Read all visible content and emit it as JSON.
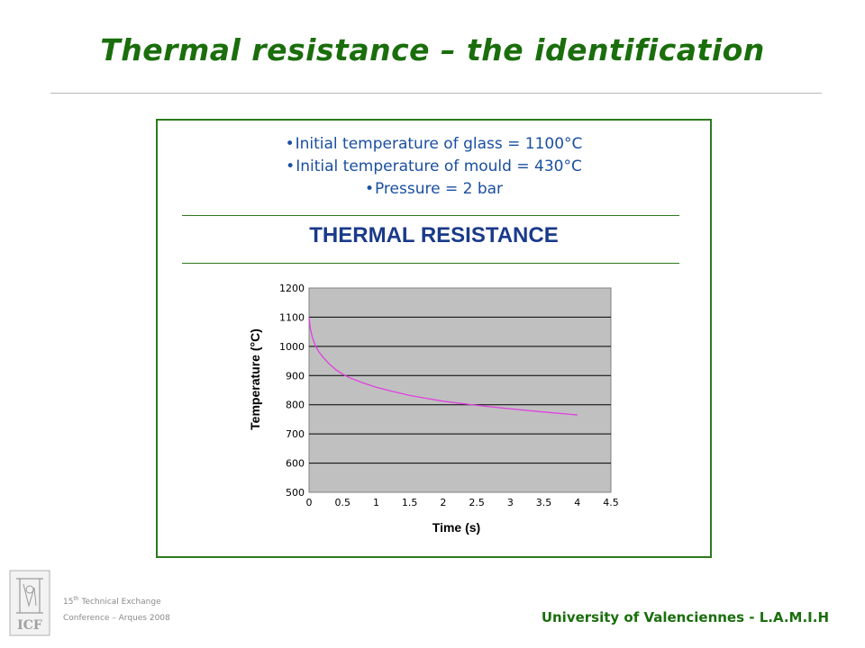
{
  "slide": {
    "title": "Thermal resistance – the identification",
    "bullets": [
      "Initial temperature of glass = 1100°C",
      "Initial temperature of mould = 430°C",
      "Pressure = 2 bar"
    ],
    "subtitle": "THERMAL RESISTANCE",
    "footer_left_line1": "15",
    "footer_left_sup": "th",
    "footer_left_line1_rest": " Technical Exchange",
    "footer_left_line2": "Conference – Arques 2008",
    "footer_right": "University of Valenciennes - L.A.M.I.H",
    "logo_text": "ICF"
  },
  "colors": {
    "title": "#1a6e0c",
    "bullets": "#1a4fa0",
    "subtitle": "#1a3a8a",
    "plot_bg": "#c0c0c0",
    "curve": "#e040e0"
  },
  "chart_data": {
    "type": "line",
    "xlabel": "Time (s)",
    "ylabel": "Temperature (°C)",
    "xlim": [
      0,
      4.5
    ],
    "ylim": [
      500,
      1200
    ],
    "xticks": [
      "0",
      "0.5",
      "1",
      "1.5",
      "2",
      "2.5",
      "3",
      "3.5",
      "4",
      "4.5"
    ],
    "yticks": [
      "500",
      "600",
      "700",
      "800",
      "900",
      "1000",
      "1100",
      "1200"
    ],
    "grid": "horizontal",
    "series": [
      {
        "x": [
          0,
          0.02,
          0.05,
          0.1,
          0.15,
          0.2,
          0.3,
          0.4,
          0.5,
          0.6,
          0.8,
          1.0,
          1.2,
          1.5,
          1.8,
          2.0,
          2.5,
          3.0,
          3.5,
          4.0
        ],
        "y": [
          1100,
          1060,
          1030,
          1000,
          980,
          965,
          940,
          920,
          905,
          893,
          875,
          860,
          848,
          832,
          820,
          812,
          798,
          786,
          775,
          765
        ]
      }
    ]
  }
}
